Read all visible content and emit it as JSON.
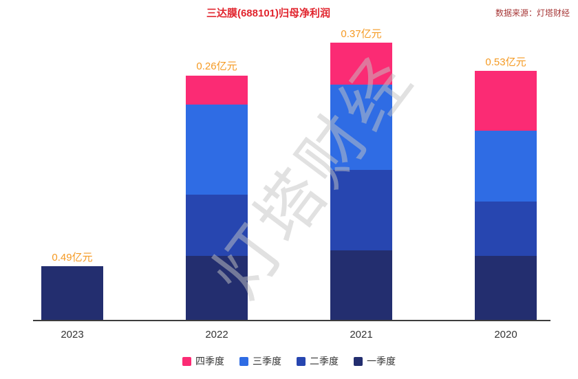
{
  "header": {
    "title": "三达膜(688101)归母净利润",
    "source": "数据来源：灯塔财经"
  },
  "watermark": {
    "text": "灯塔财经"
  },
  "colors": {
    "title": "#e1242d",
    "source": "#a63636",
    "value_label": "#f59a23",
    "text": "#333333",
    "axis": "#3c3c3c",
    "watermark": "rgba(195,195,195,0.5)"
  },
  "chart_data": {
    "type": "bar",
    "stacked": true,
    "title": "三达膜(688101)归母净利润",
    "unit": "亿元",
    "value_label_suffix": "亿元",
    "categories": [
      "2023",
      "2022",
      "2021",
      "2020"
    ],
    "series": [
      {
        "name": "一季度",
        "color": "#232e6f",
        "values": [
          0.49,
          0.58,
          0.63,
          0.58
        ]
      },
      {
        "name": "二季度",
        "color": "#2746b0",
        "values": [
          null,
          0.54,
          0.71,
          0.48
        ]
      },
      {
        "name": "三季度",
        "color": "#2f6ce4",
        "values": [
          null,
          0.8,
          0.76,
          0.63
        ]
      },
      {
        "name": "四季度",
        "color": "#fb2b74",
        "values": [
          null,
          0.26,
          0.37,
          0.53
        ]
      }
    ],
    "legend_order": [
      "四季度",
      "三季度",
      "二季度",
      "一季度"
    ],
    "legend_position": "bottom",
    "xlabel": "",
    "ylabel": "",
    "ylim": [
      0,
      2.6
    ],
    "grid": false,
    "y_axis_shown": false
  }
}
